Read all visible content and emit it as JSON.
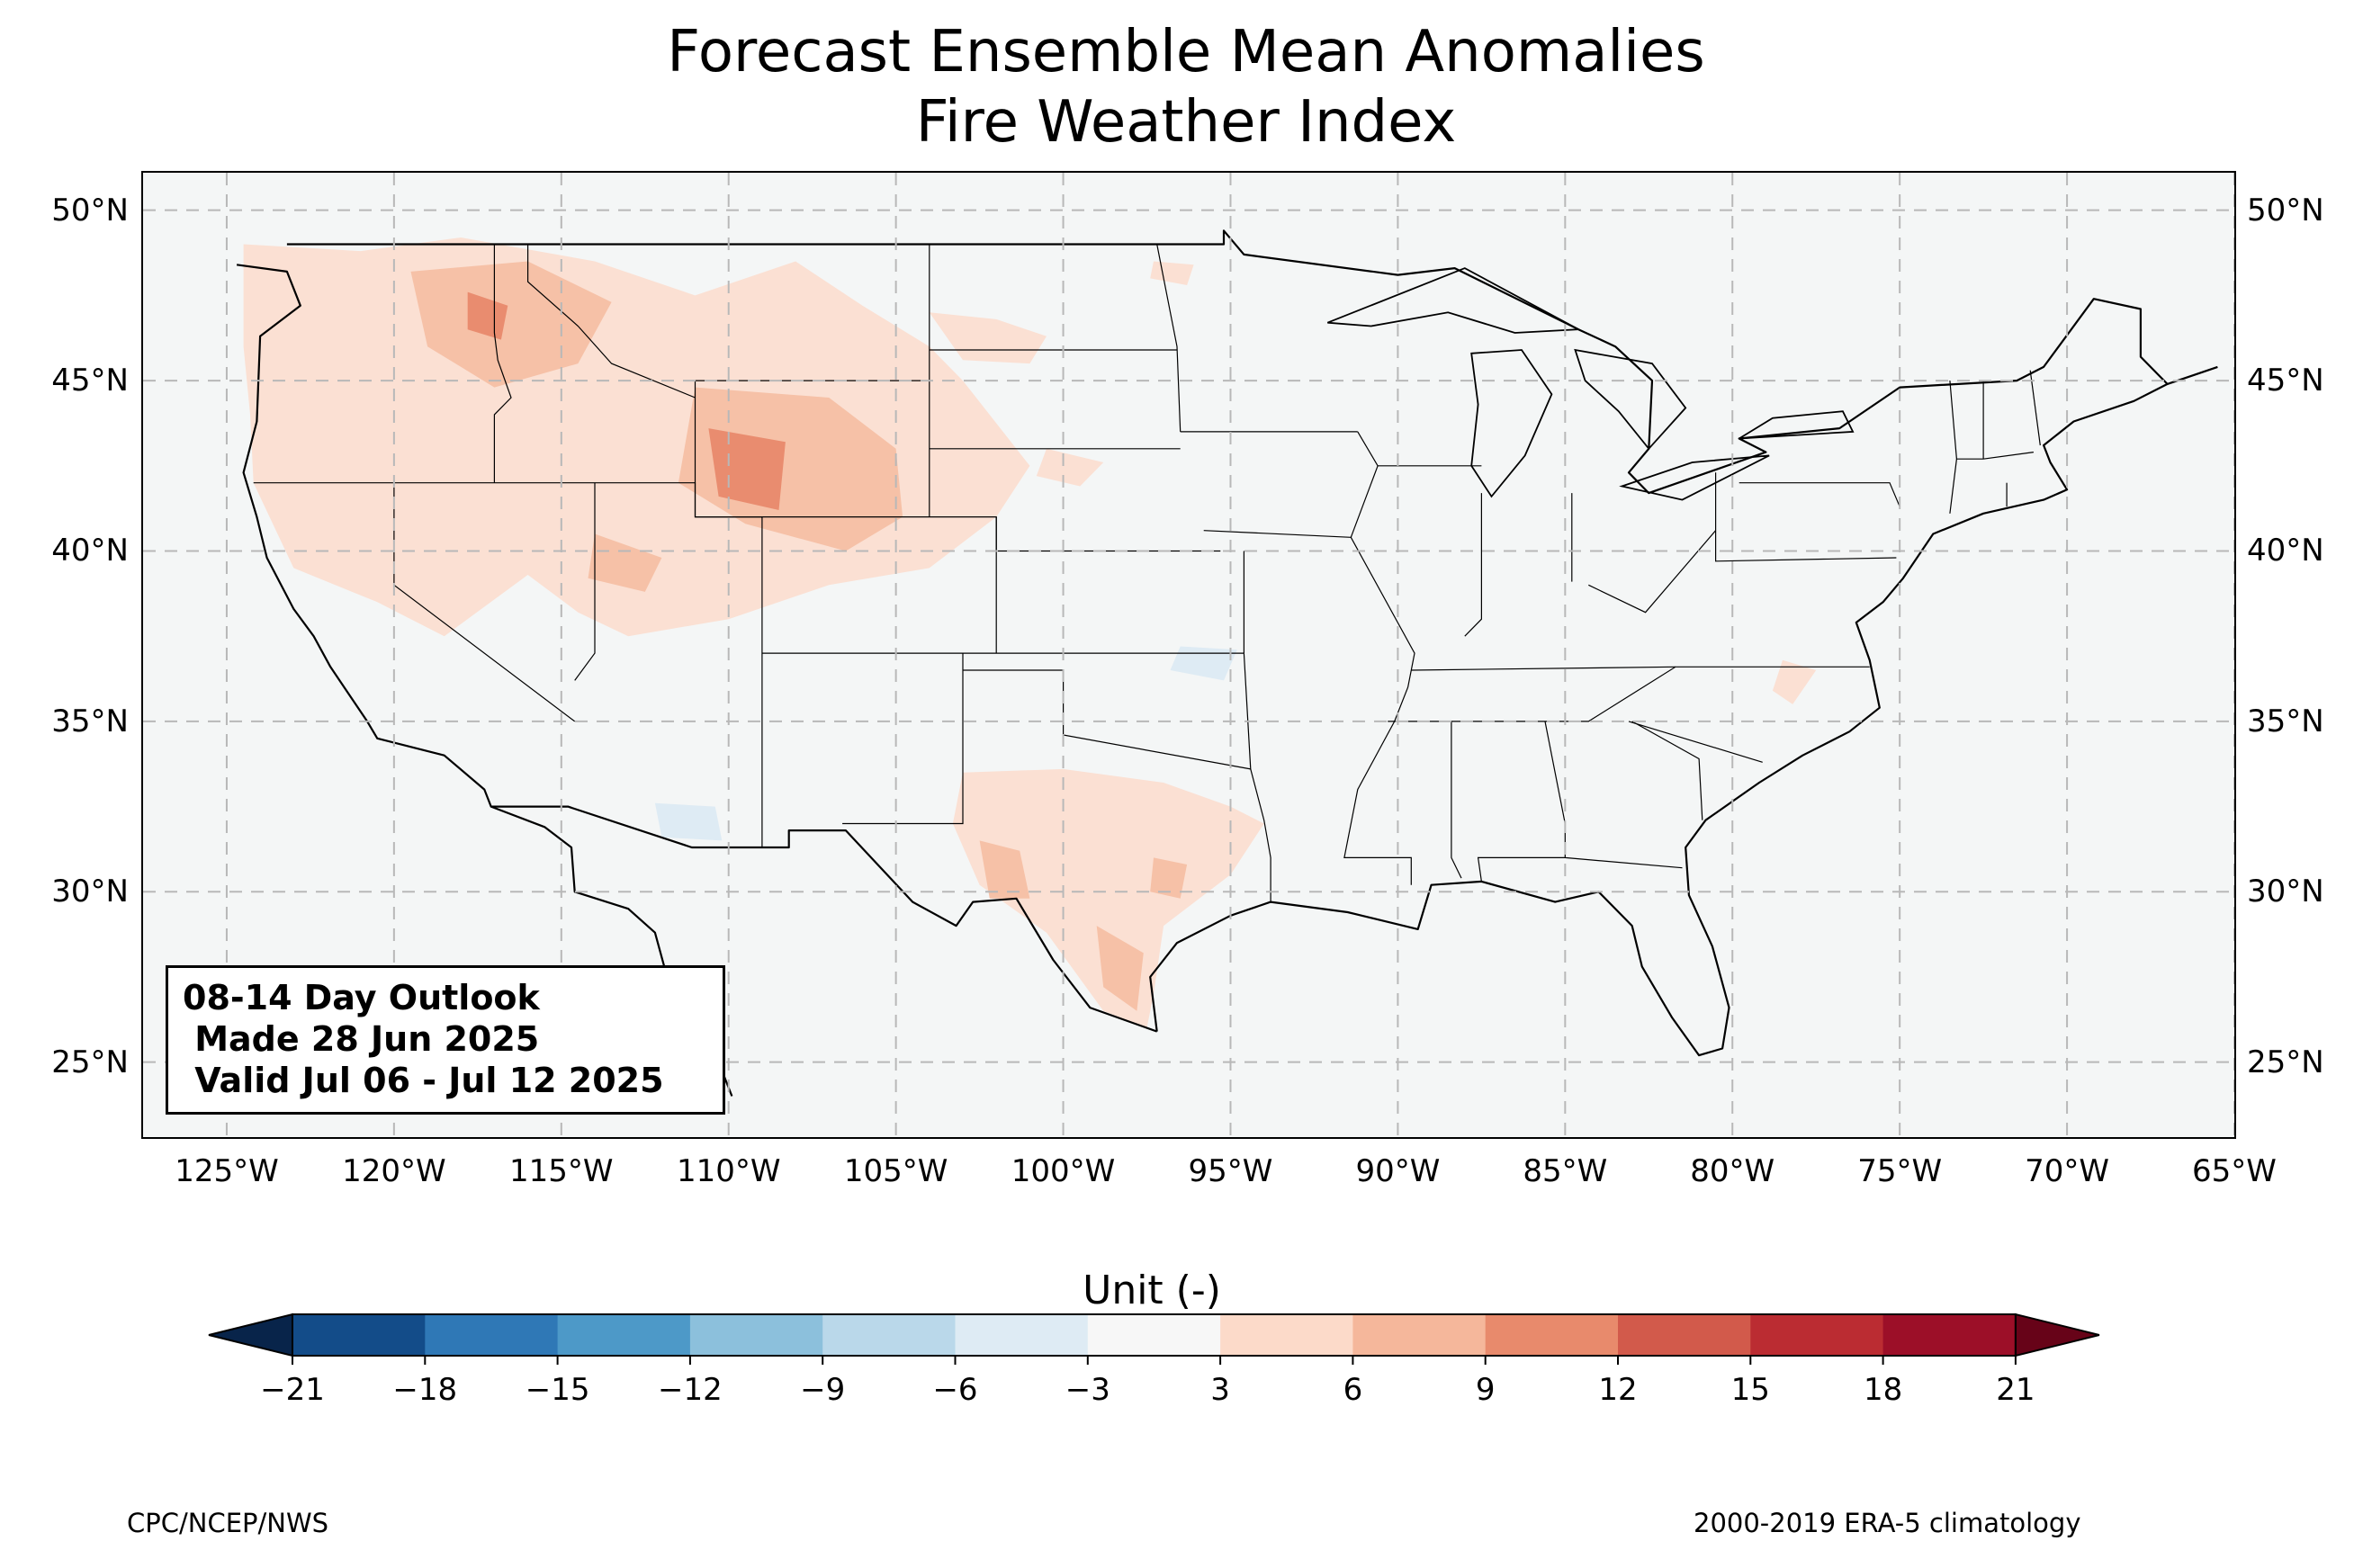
{
  "title_line1": "Forecast Ensemble Mean Anomalies",
  "title_line2": "Fire Weather Index",
  "map": {
    "lon_min": -127.5,
    "lon_max": -65.0,
    "lat_min": 22.8,
    "lat_max": 51.1,
    "lat_ticks": [
      {
        "value": 50,
        "label": "50°N"
      },
      {
        "value": 45,
        "label": "45°N"
      },
      {
        "value": 40,
        "label": "40°N"
      },
      {
        "value": 35,
        "label": "35°N"
      },
      {
        "value": 30,
        "label": "30°N"
      },
      {
        "value": 25,
        "label": "25°N"
      }
    ],
    "lon_ticks": [
      {
        "value": -125,
        "label": "125°W"
      },
      {
        "value": -120,
        "label": "120°W"
      },
      {
        "value": -115,
        "label": "115°W"
      },
      {
        "value": -110,
        "label": "110°W"
      },
      {
        "value": -105,
        "label": "105°W"
      },
      {
        "value": -100,
        "label": "100°W"
      },
      {
        "value": -95,
        "label": "95°W"
      },
      {
        "value": -90,
        "label": "90°W"
      },
      {
        "value": -85,
        "label": "85°W"
      },
      {
        "value": -80,
        "label": "80°W"
      },
      {
        "value": -75,
        "label": "75°W"
      },
      {
        "value": -70,
        "label": "70°W"
      },
      {
        "value": -65,
        "label": "65°W"
      }
    ],
    "anomaly_regions": [
      {
        "name": "northwest",
        "level": 3,
        "polygon": [
          [
            -124.5,
            49
          ],
          [
            -121,
            48.8
          ],
          [
            -118,
            49.2
          ],
          [
            -114,
            48.5
          ],
          [
            -111,
            47.5
          ],
          [
            -108,
            48.5
          ],
          [
            -106,
            47.2
          ],
          [
            -104,
            46
          ],
          [
            -103,
            45
          ],
          [
            -101,
            42.5
          ],
          [
            -102,
            41
          ],
          [
            -104,
            39.5
          ],
          [
            -107,
            39
          ],
          [
            -110,
            38
          ],
          [
            -113,
            37.5
          ],
          [
            -114.5,
            38.2
          ],
          [
            -116,
            39.3
          ],
          [
            -118.5,
            37.5
          ],
          [
            -120.5,
            38.5
          ],
          [
            -123,
            39.5
          ],
          [
            -124.2,
            42
          ],
          [
            -124.3,
            44
          ],
          [
            -124.5,
            46
          ]
        ]
      },
      {
        "name": "north-dakota",
        "level": 3,
        "polygon": [
          [
            -104,
            47
          ],
          [
            -102,
            46.8
          ],
          [
            -100.5,
            46.3
          ],
          [
            -101,
            45.5
          ],
          [
            -103,
            45.6
          ]
        ]
      },
      {
        "name": "minnesota-spot",
        "level": 3,
        "polygon": [
          [
            -97.3,
            48.5
          ],
          [
            -96.1,
            48.4
          ],
          [
            -96.3,
            47.8
          ],
          [
            -97.4,
            48
          ]
        ]
      },
      {
        "name": "nebraska-spot",
        "level": 3,
        "polygon": [
          [
            -100.5,
            43
          ],
          [
            -98.8,
            42.6
          ],
          [
            -99.5,
            41.9
          ],
          [
            -100.8,
            42.2
          ]
        ]
      },
      {
        "name": "texas",
        "level": 3,
        "polygon": [
          [
            -103,
            33.5
          ],
          [
            -100,
            33.6
          ],
          [
            -97,
            33.2
          ],
          [
            -95,
            32.5
          ],
          [
            -94,
            32
          ],
          [
            -95,
            30.5
          ],
          [
            -97,
            29
          ],
          [
            -97.3,
            27
          ],
          [
            -97.5,
            26
          ],
          [
            -98.8,
            26.5
          ],
          [
            -100.5,
            28.8
          ],
          [
            -102.5,
            30.2
          ],
          [
            -103.3,
            32
          ]
        ]
      },
      {
        "name": "carolina",
        "level": 3,
        "polygon": [
          [
            -78.5,
            36.8
          ],
          [
            -77.5,
            36.5
          ],
          [
            -78.2,
            35.5
          ],
          [
            -78.8,
            35.9
          ]
        ]
      },
      {
        "name": "idaho-montana",
        "level": 6,
        "polygon": [
          [
            -119.5,
            48.2
          ],
          [
            -116,
            48.5
          ],
          [
            -113.5,
            47.3
          ],
          [
            -114.5,
            45.5
          ],
          [
            -117,
            44.8
          ],
          [
            -119,
            46
          ]
        ]
      },
      {
        "name": "wyoming",
        "level": 6,
        "polygon": [
          [
            -111,
            44.8
          ],
          [
            -107,
            44.5
          ],
          [
            -105,
            43
          ],
          [
            -104.8,
            41
          ],
          [
            -106.5,
            40
          ],
          [
            -109.5,
            40.8
          ],
          [
            -111.5,
            42
          ]
        ]
      },
      {
        "name": "utah",
        "level": 6,
        "polygon": [
          [
            -114,
            40.5
          ],
          [
            -112,
            39.8
          ],
          [
            -112.5,
            38.8
          ],
          [
            -114.2,
            39.2
          ]
        ]
      },
      {
        "name": "west-texas",
        "level": 6,
        "polygon": [
          [
            -102.5,
            31.5
          ],
          [
            -101.3,
            31.2
          ],
          [
            -101,
            29.8
          ],
          [
            -102.2,
            29.8
          ]
        ]
      },
      {
        "name": "south-texas",
        "level": 6,
        "polygon": [
          [
            -99,
            29
          ],
          [
            -97.6,
            28.2
          ],
          [
            -97.8,
            26.5
          ],
          [
            -98.8,
            27.2
          ]
        ]
      },
      {
        "name": "central-texas",
        "level": 6,
        "polygon": [
          [
            -97.3,
            31
          ],
          [
            -96.3,
            30.8
          ],
          [
            -96.5,
            29.8
          ],
          [
            -97.4,
            30
          ]
        ]
      },
      {
        "name": "idaho-core",
        "level": 9,
        "polygon": [
          [
            -117.8,
            47.6
          ],
          [
            -116.6,
            47.2
          ],
          [
            -116.8,
            46.2
          ],
          [
            -117.8,
            46.5
          ]
        ]
      },
      {
        "name": "wyoming-core",
        "level": 9,
        "polygon": [
          [
            -110.6,
            43.6
          ],
          [
            -108.3,
            43.2
          ],
          [
            -108.5,
            41.2
          ],
          [
            -110.3,
            41.6
          ]
        ]
      }
    ],
    "negative_regions": [
      {
        "name": "arizona",
        "level": -3,
        "polygon": [
          [
            -112.2,
            32.6
          ],
          [
            -110.4,
            32.5
          ],
          [
            -110.2,
            31.5
          ],
          [
            -112,
            31.6
          ]
        ]
      },
      {
        "name": "oklahoma",
        "level": -3,
        "polygon": [
          [
            -96.5,
            37.2
          ],
          [
            -94.8,
            37.1
          ],
          [
            -95.2,
            36.2
          ],
          [
            -96.8,
            36.5
          ]
        ]
      }
    ]
  },
  "info_box": {
    "line1": "08-14 Day Outlook",
    "line2": " Made 28 Jun 2025",
    "line3": " Valid Jul 06 - Jul 12 2025"
  },
  "colorbar": {
    "title": "Unit (-)",
    "ticks": [
      "−21",
      "−18",
      "−15",
      "−12",
      "−9",
      "−6",
      "−3",
      "3",
      "6",
      "9",
      "12",
      "15",
      "18",
      "21"
    ],
    "colors": [
      "#134c89",
      "#2f78b6",
      "#4d99c8",
      "#8cc0dc",
      "#bad8ea",
      "#deebf4",
      "#f7f7f7",
      "#fcdac9",
      "#f5b79b",
      "#e88a6c",
      "#d25a4b",
      "#bb2c32",
      "#9c0f28"
    ],
    "under_color": "#08244a",
    "over_color": "#670318",
    "anomaly_fill": {
      "3": "#fbe0d3",
      "6": "#f6c1a7",
      "9": "#e98c6f",
      "-3": "#deebf4"
    }
  },
  "footer_left": "CPC/NCEP/NWS",
  "footer_right": "2000-2019 ERA-5 climatology"
}
